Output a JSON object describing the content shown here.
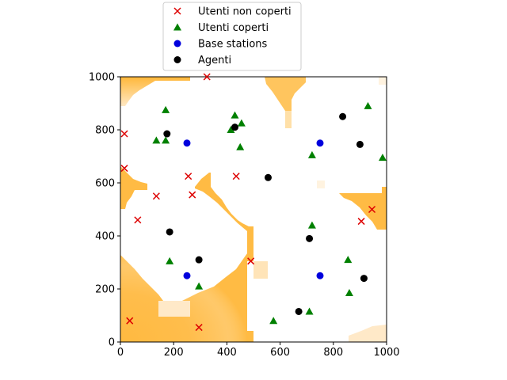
{
  "chart_data": {
    "type": "scatter",
    "xlim": [
      0,
      1000
    ],
    "ylim": [
      0,
      1000
    ],
    "xticks": [
      0,
      200,
      400,
      600,
      800,
      1000
    ],
    "yticks": [
      0,
      200,
      400,
      600,
      800,
      1000
    ],
    "legend_position": "top-center outside",
    "heatmap_colors": {
      "low": "#ffffff",
      "high": "#ffb739"
    },
    "series": [
      {
        "name": "Utenti non coperti",
        "marker": "x",
        "color": "#dd0000",
        "points": [
          [
            325,
            1000
          ],
          [
            15,
            785
          ],
          [
            15,
            655
          ],
          [
            255,
            625
          ],
          [
            435,
            625
          ],
          [
            270,
            555
          ],
          [
            135,
            550
          ],
          [
            65,
            460
          ],
          [
            945,
            500
          ],
          [
            905,
            455
          ],
          [
            490,
            305
          ],
          [
            35,
            80
          ],
          [
            295,
            55
          ]
        ]
      },
      {
        "name": "Utenti coperti",
        "marker": "triangle",
        "color": "#008000",
        "points": [
          [
            170,
            875
          ],
          [
            430,
            855
          ],
          [
            455,
            825
          ],
          [
            415,
            800
          ],
          [
            135,
            760
          ],
          [
            170,
            760
          ],
          [
            450,
            735
          ],
          [
            930,
            890
          ],
          [
            985,
            695
          ],
          [
            720,
            705
          ],
          [
            720,
            440
          ],
          [
            185,
            305
          ],
          [
            295,
            210
          ],
          [
            855,
            310
          ],
          [
            860,
            185
          ],
          [
            575,
            80
          ],
          [
            710,
            115
          ]
        ]
      },
      {
        "name": "Base stations",
        "marker": "circle",
        "color": "#0000dd",
        "points": [
          [
            250,
            750
          ],
          [
            750,
            750
          ],
          [
            250,
            250
          ],
          [
            750,
            250
          ]
        ]
      },
      {
        "name": "Agenti",
        "marker": "circle",
        "color": "#000000",
        "points": [
          [
            175,
            785
          ],
          [
            430,
            810
          ],
          [
            555,
            620
          ],
          [
            835,
            850
          ],
          [
            900,
            745
          ],
          [
            185,
            415
          ],
          [
            295,
            310
          ],
          [
            710,
            390
          ],
          [
            915,
            240
          ],
          [
            670,
            115
          ]
        ]
      }
    ]
  }
}
